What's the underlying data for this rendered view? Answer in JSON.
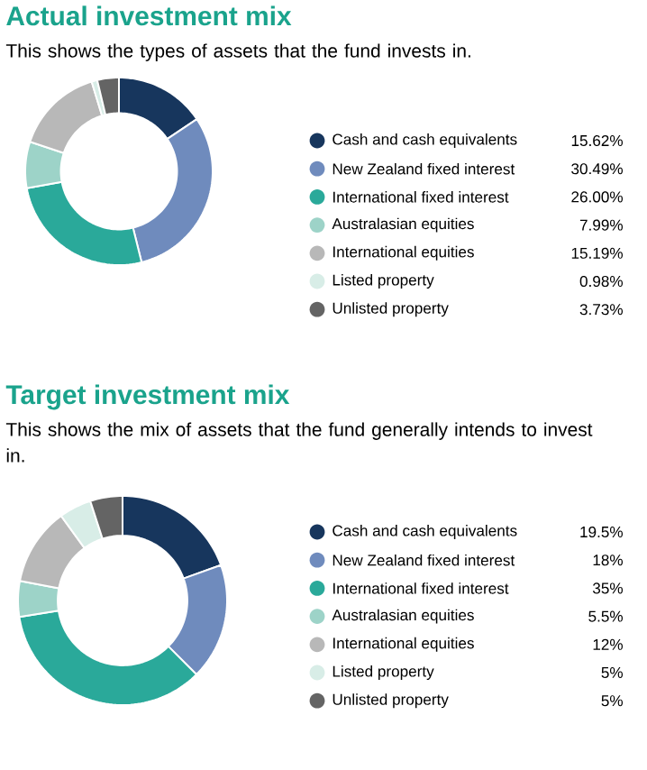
{
  "chart_data": [
    {
      "type": "donut",
      "title": "Actual investment mix",
      "subtitle": "This shows the types of assets that the fund invests in.",
      "categories": [
        "Cash and cash equivalents",
        "New Zealand fixed interest",
        "International fixed interest",
        "Australasian equities",
        "International equities",
        "Listed property",
        "Unlisted property"
      ],
      "values": [
        15.62,
        30.49,
        26.0,
        7.99,
        15.19,
        0.98,
        3.73
      ],
      "value_labels": [
        "15.62%",
        "30.49%",
        "26.00%",
        "7.99%",
        "15.19%",
        "0.98%",
        "3.73%"
      ],
      "colors": [
        "#17365d",
        "#6f8bbd",
        "#2aa99a",
        "#9dd3c8",
        "#b8b8b8",
        "#d8ede7",
        "#646464"
      ],
      "legend": "right"
    },
    {
      "type": "donut",
      "title": "Target investment mix",
      "subtitle": "This shows the mix of assets that the fund generally intends to invest in.",
      "categories": [
        "Cash and cash equivalents",
        "New Zealand fixed interest",
        "International fixed interest",
        "Australasian equities",
        "International equities",
        "Listed property",
        "Unlisted property"
      ],
      "values": [
        19.5,
        18,
        35,
        5.5,
        12,
        5,
        5
      ],
      "value_labels": [
        "19.5%",
        "18%",
        "35%",
        "5.5%",
        "12%",
        "5%",
        "5%"
      ],
      "colors": [
        "#17365d",
        "#6f8bbd",
        "#2aa99a",
        "#9dd3c8",
        "#b8b8b8",
        "#d8ede7",
        "#646464"
      ],
      "legend": "right"
    }
  ]
}
